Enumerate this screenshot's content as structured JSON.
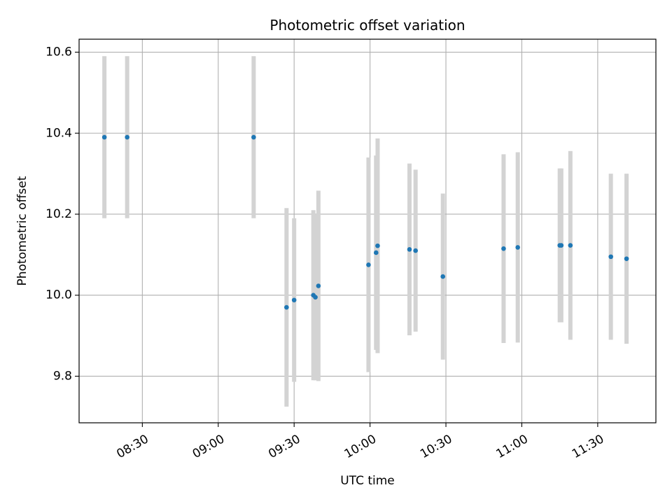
{
  "chart_data": {
    "type": "scatter",
    "title": "Photometric offset variation",
    "xlabel": "UTC time",
    "ylabel": "Photometric offset",
    "x_axis_kind": "time",
    "xlim": [
      "08:05",
      "11:53"
    ],
    "ylim": [
      9.685,
      10.632
    ],
    "grid": true,
    "x_ticks": [
      "08:30",
      "09:00",
      "09:30",
      "10:00",
      "10:30",
      "11:00",
      "11:30"
    ],
    "y_ticks": [
      9.8,
      10.0,
      10.2,
      10.4,
      10.6
    ],
    "y_tick_labels": [
      "9.8",
      "10.0",
      "10.2",
      "10.4",
      "10.6"
    ],
    "colors": {
      "point": "#1f77b4",
      "errorbar": "#d3d3d3",
      "grid": "#b0b0b0"
    },
    "points": [
      {
        "t": "08:15:00",
        "y": 10.39,
        "err": 0.2
      },
      {
        "t": "08:24:00",
        "y": 10.39,
        "err": 0.2
      },
      {
        "t": "09:14:00",
        "y": 10.39,
        "err": 0.2
      },
      {
        "t": "09:27:00",
        "y": 9.97,
        "err": 0.245
      },
      {
        "t": "09:30:00",
        "y": 9.988,
        "err": 0.202
      },
      {
        "t": "09:37:36",
        "y": 10.0,
        "err": 0.21
      },
      {
        "t": "09:38:24",
        "y": 9.995,
        "err": 0.205
      },
      {
        "t": "09:39:36",
        "y": 10.023,
        "err": 0.235
      },
      {
        "t": "09:59:24",
        "y": 10.075,
        "err": 0.265
      },
      {
        "t": "10:02:24",
        "y": 10.105,
        "err": 0.24
      },
      {
        "t": "10:03:00",
        "y": 10.122,
        "err": 0.265
      },
      {
        "t": "10:15:36",
        "y": 10.113,
        "err": 0.212
      },
      {
        "t": "10:18:00",
        "y": 10.11,
        "err": 0.2
      },
      {
        "t": "10:28:48",
        "y": 10.046,
        "err": 0.205
      },
      {
        "t": "10:52:48",
        "y": 10.115,
        "err": 0.233
      },
      {
        "t": "10:58:24",
        "y": 10.118,
        "err": 0.235
      },
      {
        "t": "11:15:00",
        "y": 10.123,
        "err": 0.19
      },
      {
        "t": "11:15:36",
        "y": 10.123,
        "err": 0.19
      },
      {
        "t": "11:19:12",
        "y": 10.123,
        "err": 0.233
      },
      {
        "t": "11:35:12",
        "y": 10.095,
        "err": 0.205
      },
      {
        "t": "11:41:24",
        "y": 10.09,
        "err": 0.21
      }
    ]
  }
}
